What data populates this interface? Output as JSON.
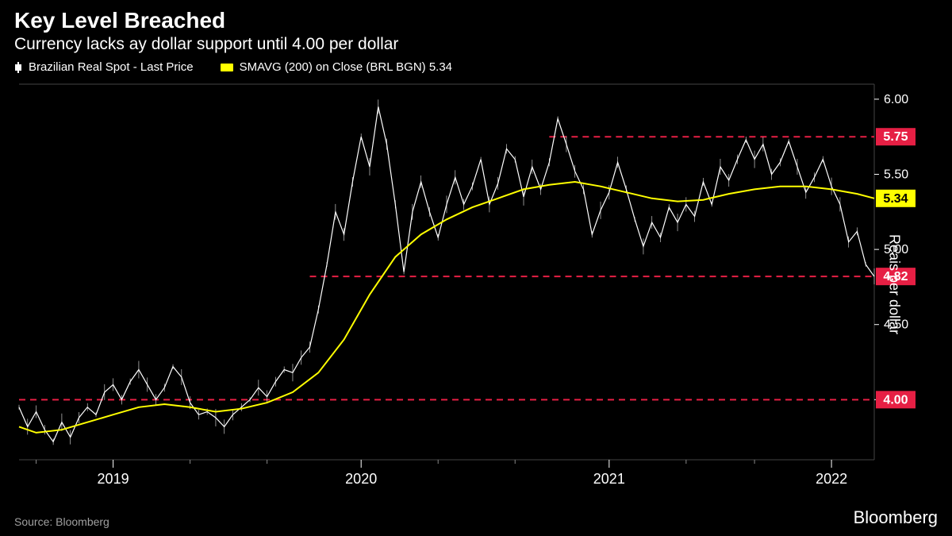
{
  "header": {
    "title": "Key Level Breached",
    "subtitle": "Currency lacks ay dollar support until 4.00 per dollar"
  },
  "legend": {
    "series1": "Brazilian Real Spot - Last Price",
    "series2": "SMAVG (200)  on Close (BRL BGN) 5.34"
  },
  "footer": {
    "source": "Source: Bloomberg",
    "brand": "Bloomberg"
  },
  "chart": {
    "type": "line",
    "background_color": "#000000",
    "grid_color": "#444444",
    "axis_color": "#ffffff",
    "x_domain": [
      0,
      100
    ],
    "y_domain": [
      3.6,
      6.1
    ],
    "ylim": [
      3.6,
      6.1
    ],
    "yticks": [
      4.0,
      4.5,
      5.0,
      5.5,
      6.0
    ],
    "ytick_labels": [
      "4.00",
      "4.50",
      "5.00",
      "5.50",
      "6.00"
    ],
    "ylabel": "Reais per dollar",
    "xticks": [
      11,
      40,
      69,
      95
    ],
    "xtick_labels": [
      "2019",
      "2020",
      "2021",
      "2022"
    ],
    "xminor": [
      2,
      20,
      29,
      49,
      58,
      78,
      86
    ],
    "horizontal_lines": [
      {
        "y": 4.0,
        "color": "#e61f44",
        "label": "4.00",
        "label_bg": "#e61f44",
        "label_fg": "#ffffff"
      },
      {
        "y": 4.82,
        "color": "#e61f44",
        "label": "4.82",
        "label_bg": "#e61f44",
        "label_fg": "#ffffff",
        "x_start": 34
      },
      {
        "y": 5.75,
        "color": "#e61f44",
        "label": "5.75",
        "label_bg": "#e61f44",
        "label_fg": "#ffffff",
        "x_start": 62
      }
    ],
    "sma_last_tag": {
      "y": 5.34,
      "label": "5.34",
      "bg": "#ffff00",
      "fg": "#000000"
    },
    "price_series": {
      "color": "#ffffff",
      "width": 1.2,
      "points": [
        [
          0,
          3.95
        ],
        [
          1,
          3.82
        ],
        [
          2,
          3.92
        ],
        [
          3,
          3.8
        ],
        [
          4,
          3.72
        ],
        [
          5,
          3.85
        ],
        [
          6,
          3.75
        ],
        [
          7,
          3.88
        ],
        [
          8,
          3.95
        ],
        [
          9,
          3.9
        ],
        [
          10,
          4.05
        ],
        [
          11,
          4.1
        ],
        [
          12,
          4.0
        ],
        [
          13,
          4.12
        ],
        [
          14,
          4.2
        ],
        [
          15,
          4.1
        ],
        [
          16,
          4.0
        ],
        [
          17,
          4.08
        ],
        [
          18,
          4.22
        ],
        [
          19,
          4.15
        ],
        [
          20,
          3.98
        ],
        [
          21,
          3.9
        ],
        [
          22,
          3.92
        ],
        [
          23,
          3.88
        ],
        [
          24,
          3.82
        ],
        [
          25,
          3.9
        ],
        [
          26,
          3.95
        ],
        [
          27,
          4.0
        ],
        [
          28,
          4.08
        ],
        [
          29,
          4.02
        ],
        [
          30,
          4.12
        ],
        [
          31,
          4.2
        ],
        [
          32,
          4.18
        ],
        [
          33,
          4.28
        ],
        [
          34,
          4.35
        ],
        [
          35,
          4.6
        ],
        [
          36,
          4.9
        ],
        [
          37,
          5.25
        ],
        [
          38,
          5.1
        ],
        [
          39,
          5.45
        ],
        [
          40,
          5.75
        ],
        [
          41,
          5.55
        ],
        [
          42,
          5.95
        ],
        [
          43,
          5.7
        ],
        [
          44,
          5.3
        ],
        [
          45,
          4.85
        ],
        [
          46,
          5.25
        ],
        [
          47,
          5.45
        ],
        [
          48,
          5.25
        ],
        [
          49,
          5.08
        ],
        [
          50,
          5.3
        ],
        [
          51,
          5.48
        ],
        [
          52,
          5.3
        ],
        [
          53,
          5.42
        ],
        [
          54,
          5.6
        ],
        [
          55,
          5.3
        ],
        [
          56,
          5.44
        ],
        [
          57,
          5.67
        ],
        [
          58,
          5.6
        ],
        [
          59,
          5.35
        ],
        [
          60,
          5.55
        ],
        [
          61,
          5.4
        ],
        [
          62,
          5.58
        ],
        [
          63,
          5.87
        ],
        [
          64,
          5.7
        ],
        [
          65,
          5.52
        ],
        [
          66,
          5.4
        ],
        [
          67,
          5.1
        ],
        [
          68,
          5.26
        ],
        [
          69,
          5.38
        ],
        [
          70,
          5.58
        ],
        [
          71,
          5.4
        ],
        [
          72,
          5.2
        ],
        [
          73,
          5.02
        ],
        [
          74,
          5.18
        ],
        [
          75,
          5.08
        ],
        [
          76,
          5.28
        ],
        [
          77,
          5.18
        ],
        [
          78,
          5.3
        ],
        [
          79,
          5.22
        ],
        [
          80,
          5.45
        ],
        [
          81,
          5.3
        ],
        [
          82,
          5.55
        ],
        [
          83,
          5.46
        ],
        [
          84,
          5.6
        ],
        [
          85,
          5.73
        ],
        [
          86,
          5.6
        ],
        [
          87,
          5.7
        ],
        [
          88,
          5.5
        ],
        [
          89,
          5.58
        ],
        [
          90,
          5.72
        ],
        [
          91,
          5.55
        ],
        [
          92,
          5.38
        ],
        [
          93,
          5.48
        ],
        [
          94,
          5.6
        ],
        [
          95,
          5.42
        ],
        [
          96,
          5.3
        ],
        [
          97,
          5.05
        ],
        [
          98,
          5.12
        ],
        [
          99,
          4.9
        ],
        [
          100,
          4.82
        ]
      ]
    },
    "sma_series": {
      "color": "#ffff00",
      "width": 2,
      "points": [
        [
          0,
          3.82
        ],
        [
          2,
          3.78
        ],
        [
          5,
          3.8
        ],
        [
          8,
          3.85
        ],
        [
          11,
          3.9
        ],
        [
          14,
          3.95
        ],
        [
          17,
          3.97
        ],
        [
          20,
          3.95
        ],
        [
          23,
          3.92
        ],
        [
          26,
          3.94
        ],
        [
          29,
          3.98
        ],
        [
          32,
          4.05
        ],
        [
          35,
          4.18
        ],
        [
          38,
          4.4
        ],
        [
          41,
          4.7
        ],
        [
          44,
          4.95
        ],
        [
          47,
          5.1
        ],
        [
          50,
          5.2
        ],
        [
          53,
          5.28
        ],
        [
          56,
          5.34
        ],
        [
          59,
          5.4
        ],
        [
          62,
          5.43
        ],
        [
          65,
          5.45
        ],
        [
          68,
          5.42
        ],
        [
          71,
          5.38
        ],
        [
          74,
          5.34
        ],
        [
          77,
          5.32
        ],
        [
          80,
          5.33
        ],
        [
          83,
          5.37
        ],
        [
          86,
          5.4
        ],
        [
          89,
          5.42
        ],
        [
          92,
          5.42
        ],
        [
          95,
          5.4
        ],
        [
          98,
          5.37
        ],
        [
          100,
          5.34
        ]
      ]
    }
  }
}
